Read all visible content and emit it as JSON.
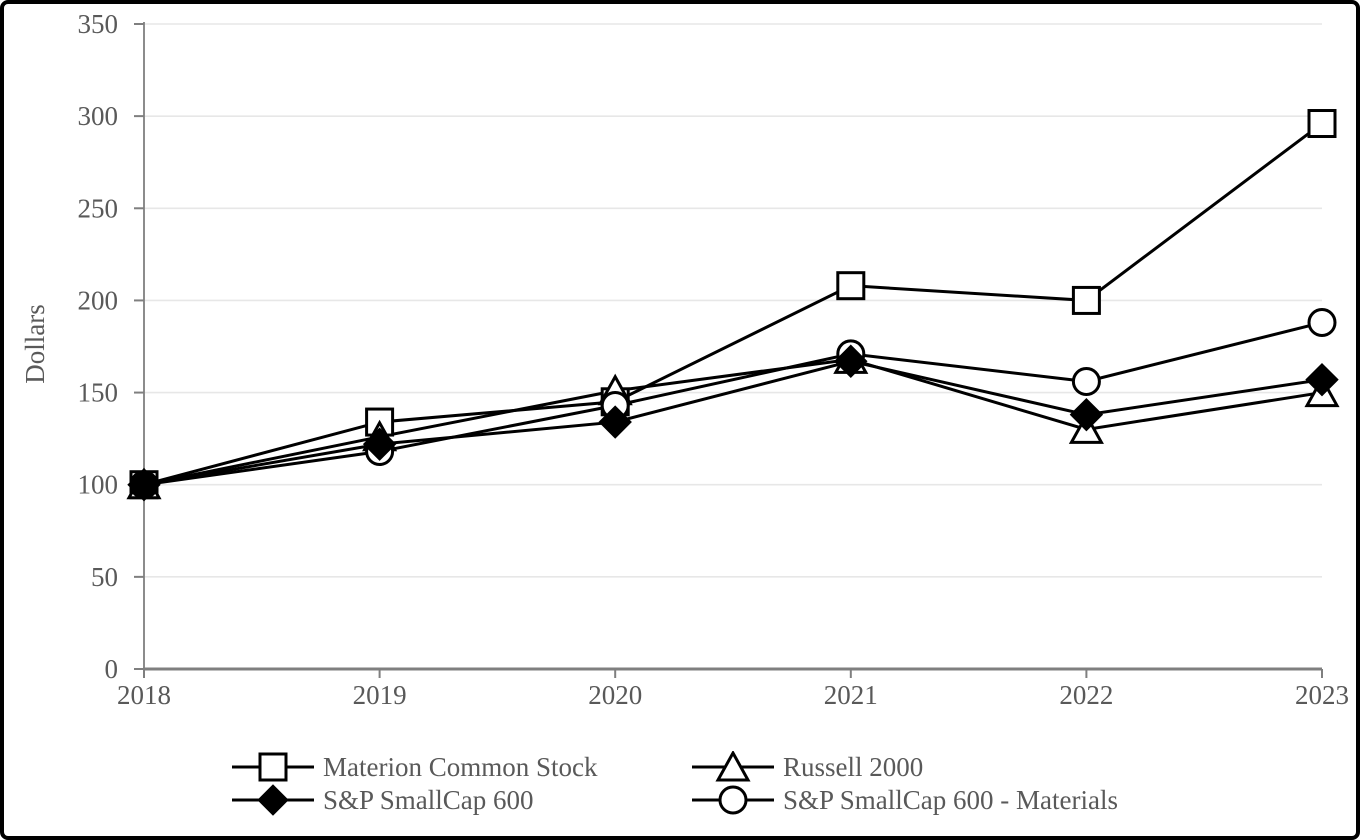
{
  "chart_data": {
    "type": "line",
    "title": "",
    "xlabel": "",
    "ylabel": "Dollars",
    "categories": [
      "2018",
      "2019",
      "2020",
      "2021",
      "2022",
      "2023"
    ],
    "y_ticks": [
      0,
      50,
      100,
      150,
      200,
      250,
      300,
      350
    ],
    "ylim": [
      0,
      350
    ],
    "grid": "horizontal",
    "legend_position": "bottom",
    "series": [
      {
        "name": "Materion Common Stock",
        "marker": "square",
        "marker_fill": "open",
        "values": [
          100,
          134,
          145,
          208,
          200,
          296
        ]
      },
      {
        "name": "Russell 2000",
        "marker": "triangle",
        "marker_fill": "open",
        "values": [
          100,
          126,
          151,
          168,
          130,
          150
        ]
      },
      {
        "name": "S&P SmallCap 600",
        "marker": "diamond",
        "marker_fill": "solid",
        "values": [
          100,
          122,
          134,
          167,
          138,
          157
        ]
      },
      {
        "name": "S&P SmallCap 600 - Materials",
        "marker": "circle",
        "marker_fill": "open",
        "values": [
          100,
          118,
          143,
          171,
          156,
          188
        ]
      }
    ],
    "colors": {
      "series_line": "#000000",
      "axis_text": "#595959",
      "gridline": "#e7e7e7",
      "x_axis_line": "#7f7f7f",
      "y_axis_line": "#8c8c8c"
    }
  }
}
